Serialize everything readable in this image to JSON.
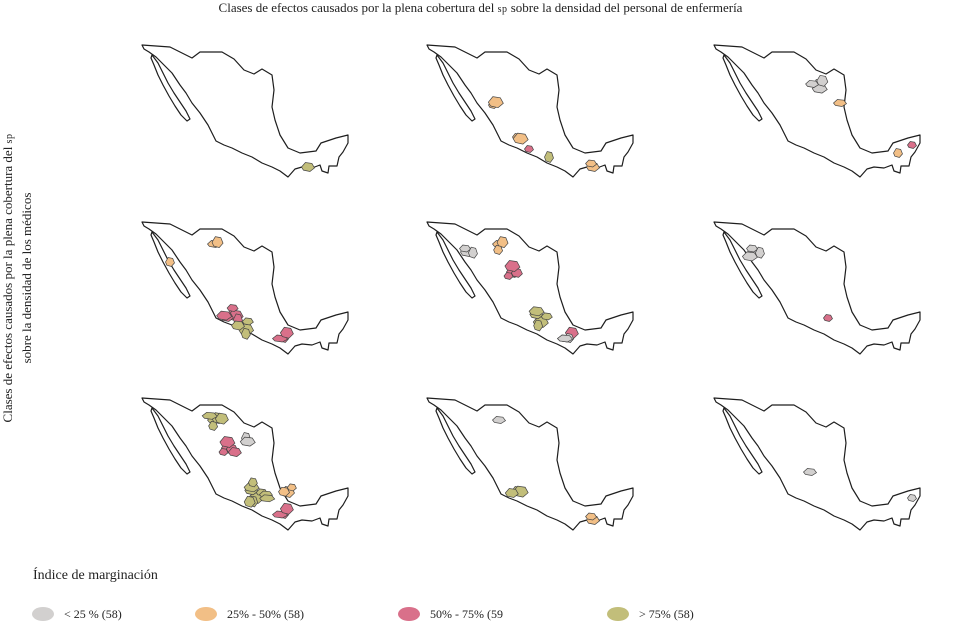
{
  "title_main": "Clases de efectos causados por la plena cobertura del ",
  "title_sc": "sp",
  "title_tail": " sobre la densidad del personal de enfermería",
  "ylabel_line1_main": "Clases de efectos causados por la plena cobertura del ",
  "ylabel_line1_sc": "sp",
  "ylabel_line2": "sobre la densidad de los médicos",
  "legend": {
    "title": "Índice de marginación",
    "items": [
      {
        "label": "< 25 % (58)",
        "color": "#d2d0cf"
      },
      {
        "label": "25% - 50% (58)",
        "color": "#f2bf86"
      },
      {
        "label": "50% - 75% (59",
        "color": "#d9708a"
      },
      {
        "label": "> 75% (58)",
        "color": "#c2be7a"
      }
    ]
  },
  "panels": [
    {
      "row": 1,
      "col": 1,
      "regions": [
        {
          "class": "> 75%",
          "area": "Chiapas",
          "count": 1
        }
      ]
    },
    {
      "row": 1,
      "col": 2,
      "regions": [
        {
          "class": "25% - 50%",
          "area": "Sinaloa",
          "count": 2
        },
        {
          "class": "25% - 50%",
          "area": "Jalisco",
          "count": 2
        },
        {
          "class": "50% - 75%",
          "area": "Michoacán",
          "count": 1
        },
        {
          "class": "> 75%",
          "area": "Guerrero",
          "count": 1
        },
        {
          "class": "25% - 50%",
          "area": "Chiapas",
          "count": 2
        }
      ]
    },
    {
      "row": 1,
      "col": 3,
      "regions": [
        {
          "class": "< 25 %",
          "area": "Coahuila",
          "count": 4
        },
        {
          "class": "25% - 50%",
          "area": "Nuevo León",
          "count": 1
        },
        {
          "class": "50% - 75%",
          "area": "Quintana Roo",
          "count": 1
        },
        {
          "class": "25% - 50%",
          "area": "Campeche",
          "count": 1
        }
      ]
    },
    {
      "row": 2,
      "col": 1,
      "regions": [
        {
          "class": "25% - 50%",
          "area": "Chihuahua",
          "count": 2
        },
        {
          "class": "25% - 50%",
          "area": "Baja California Sur",
          "count": 1
        },
        {
          "class": "50% - 75%",
          "area": "Jalisco",
          "count": 6
        },
        {
          "class": "> 75%",
          "area": "Michoacán",
          "count": 5
        },
        {
          "class": "50% - 75%",
          "area": "Oaxaca",
          "count": 3
        }
      ]
    },
    {
      "row": 2,
      "col": 2,
      "regions": [
        {
          "class": "< 25 %",
          "area": "Sonora",
          "count": 3
        },
        {
          "class": "25% - 50%",
          "area": "Chihuahua",
          "count": 3
        },
        {
          "class": "50% - 75%",
          "area": "Durango",
          "count": 4
        },
        {
          "class": "> 75%",
          "area": "Centro",
          "count": 6
        },
        {
          "class": "50% - 75%",
          "area": "Oaxaca",
          "count": 3
        },
        {
          "class": "< 25 %",
          "area": "Oaxaca",
          "count": 2
        }
      ]
    },
    {
      "row": 2,
      "col": 3,
      "regions": [
        {
          "class": "< 25 %",
          "area": "Sonora",
          "count": 4
        },
        {
          "class": "50% - 75%",
          "area": "Centro",
          "count": 1
        }
      ]
    },
    {
      "row": 3,
      "col": 1,
      "regions": [
        {
          "class": "> 75%",
          "area": "Chihuahua",
          "count": 5
        },
        {
          "class": "50% - 75%",
          "area": "Durango",
          "count": 5
        },
        {
          "class": "> 75%",
          "area": "Centro",
          "count": 10
        },
        {
          "class": "25% - 50%",
          "area": "Veracruz",
          "count": 3
        },
        {
          "class": "50% - 75%",
          "area": "Oaxaca",
          "count": 3
        },
        {
          "class": "< 25 %",
          "area": "Coahuila",
          "count": 2
        }
      ]
    },
    {
      "row": 3,
      "col": 2,
      "regions": [
        {
          "class": "< 25 %",
          "area": "Chihuahua",
          "count": 1
        },
        {
          "class": "> 75%",
          "area": "Jalisco",
          "count": 3
        },
        {
          "class": "25% - 50%",
          "area": "Chiapas",
          "count": 2
        }
      ]
    },
    {
      "row": 3,
      "col": 3,
      "regions": [
        {
          "class": "< 25 %",
          "area": "Zacatecas",
          "count": 1
        },
        {
          "class": "< 25 %",
          "area": "Quintana Roo",
          "count": 1
        }
      ]
    }
  ]
}
